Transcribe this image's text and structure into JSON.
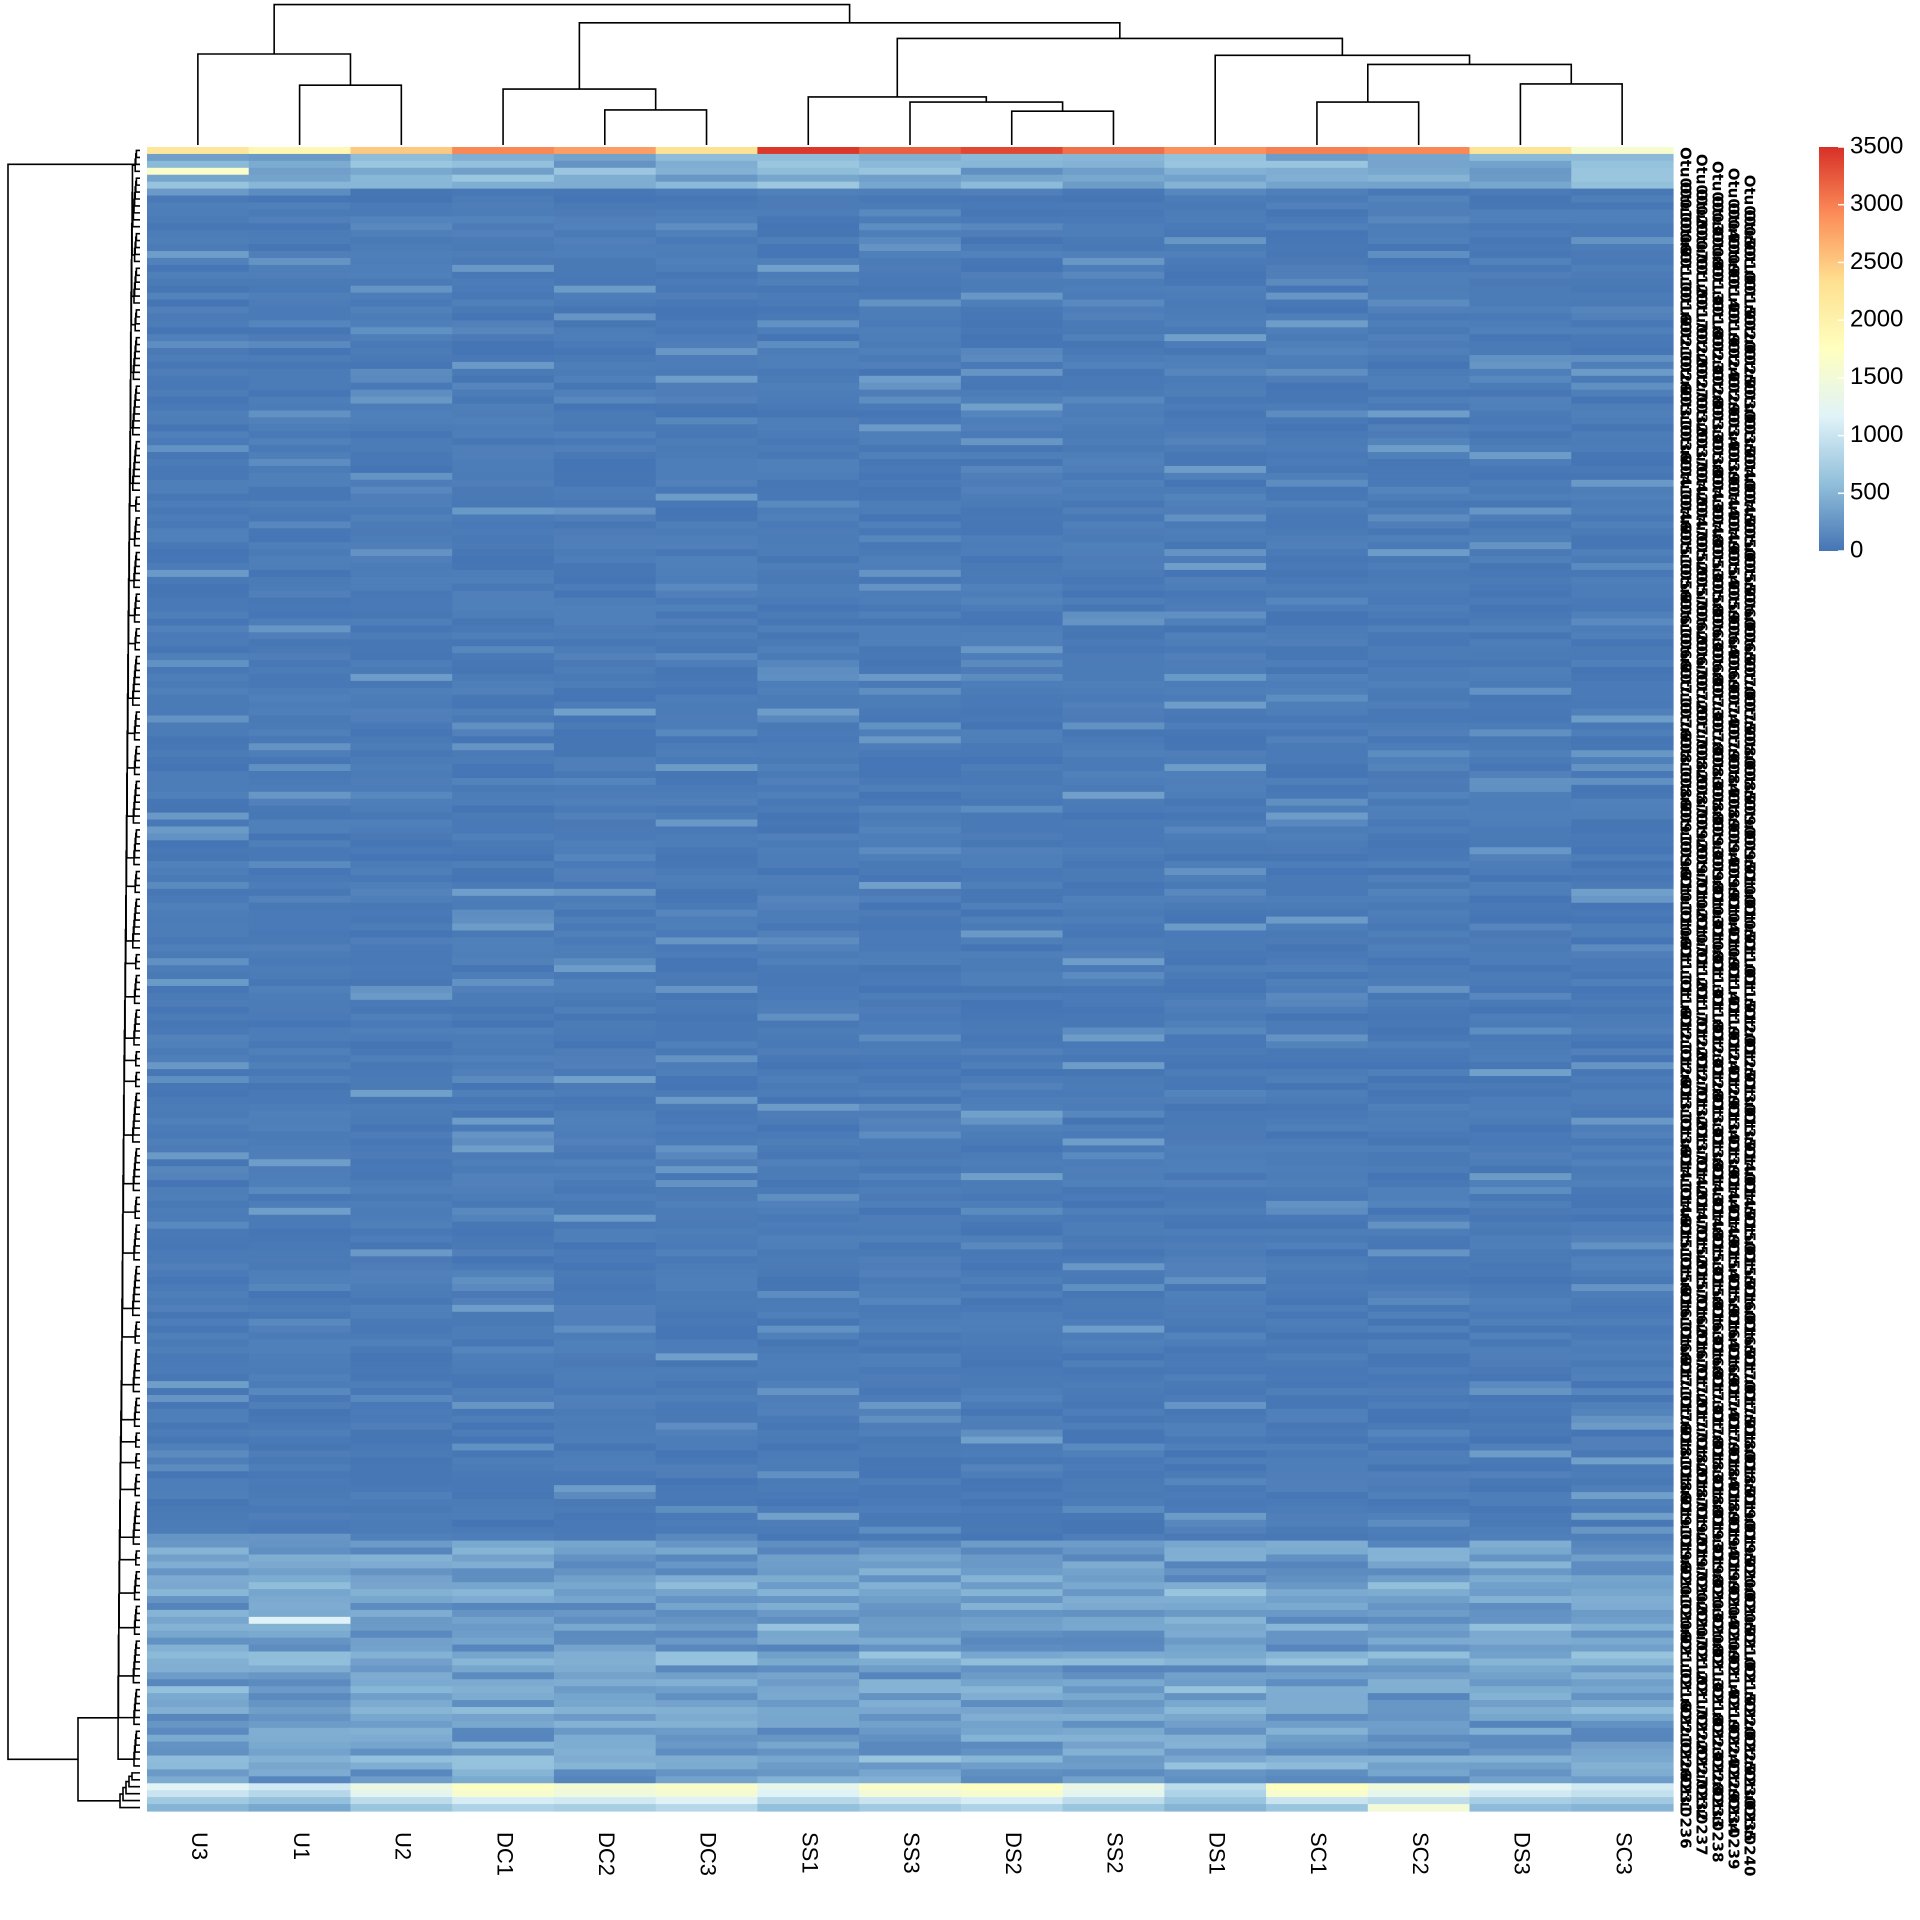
{
  "chart_data": {
    "type": "heatmap",
    "title": "",
    "xlabel": "",
    "ylabel": "",
    "columns": [
      "U3",
      "U1",
      "U2",
      "DC1",
      "DC2",
      "DC3",
      "SS1",
      "SS3",
      "DS2",
      "SS2",
      "DS1",
      "SC1",
      "SC2",
      "DS3",
      "SC3"
    ],
    "row_label_prefix": "Otu",
    "row_count": 240,
    "color_scale": {
      "min": 0,
      "max": 3500,
      "ticks": [
        0,
        500,
        1000,
        1500,
        2000,
        2500,
        3000,
        3500
      ],
      "colors": [
        "#4575b4",
        "#91bfdb",
        "#e0f3f8",
        "#ffffbf",
        "#fee090",
        "#fc8d59",
        "#d73027"
      ]
    },
    "first_row_values": [
      2200,
      1900,
      2500,
      2950,
      2800,
      2300,
      3450,
      3200,
      3350,
      3100,
      2900,
      3000,
      2950,
      2250,
      1600
    ],
    "bottom_block_values": [
      [
        1200,
        1050,
        1400,
        1700,
        1550,
        1650,
        1300,
        1650,
        1750,
        1350,
        900,
        1750,
        1450,
        1200,
        1050
      ],
      [
        1000,
        850,
        1250,
        1600,
        1450,
        1550,
        1150,
        1500,
        1600,
        1250,
        800,
        1600,
        1300,
        1050,
        950
      ],
      [
        700,
        600,
        900,
        1100,
        1050,
        1150,
        850,
        1000,
        1100,
        900,
        650,
        1000,
        900,
        750,
        700
      ],
      [
        500,
        400,
        650,
        800,
        750,
        850,
        600,
        700,
        800,
        650,
        500,
        650,
        700,
        550,
        500
      ]
    ],
    "col_dendrogram_groups": [
      [
        "U3",
        [
          "U1",
          "U2"
        ]
      ],
      [
        [
          "DC1",
          [
            "DC2",
            "DC3"
          ]
        ],
        [
          [
            [
              "SS1",
              [
                "SS3",
                [
                  "DS2",
                  "SS2"
                ]
              ]
            ]
          ],
          [
            [
              "DS1"
            ],
            [
              [
                "SC1",
                "SC2"
              ],
              [
                "DS3",
                "SC3"
              ]
            ]
          ]
        ]
      ]
    ],
    "legend_position": "right",
    "grid": false
  }
}
